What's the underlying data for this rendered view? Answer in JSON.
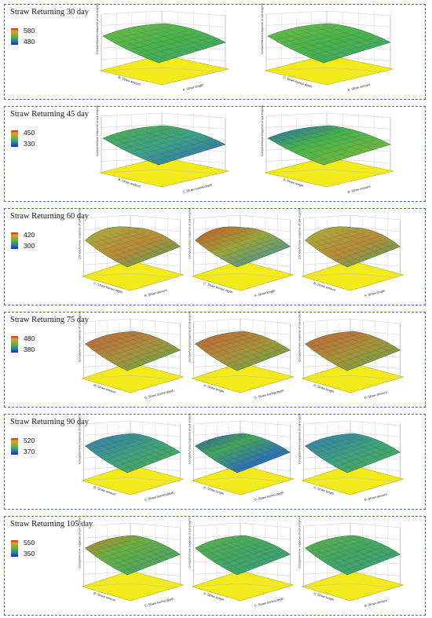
{
  "panels": [
    {
      "title": "Straw Returning 30 day",
      "color_scale": {
        "max": "580",
        "min": "480"
      },
      "plots": [
        {
          "z_axis": "Comprehensive response of soil enzyme",
          "axis_left": "B: Straw amount",
          "axis_right": "A: Straw length"
        },
        {
          "z_axis": "Comprehensive response of soil enzyme",
          "axis_left": "C: Straw buried depth",
          "axis_right": "B: Straw amount"
        }
      ]
    },
    {
      "title": "Straw Returning 45 day",
      "color_scale": {
        "max": "450",
        "min": "330"
      },
      "plots": [
        {
          "z_axis": "Comprehensive response of soil enzyme",
          "axis_left": "B: Straw amount",
          "axis_right": "C: Straw buried depth"
        },
        {
          "z_axis": "Comprehensive response of soil enzyme",
          "axis_left": "A: Straw length",
          "axis_right": "B: Straw amount"
        }
      ]
    },
    {
      "title": "Straw Returning 60 day",
      "color_scale": {
        "max": "420",
        "min": "300"
      },
      "plots": [
        {
          "z_axis": "Comprehensive response of soil enzyme",
          "axis_left": "C: Straw buried depth",
          "axis_right": "B: Straw amount"
        },
        {
          "z_axis": "Comprehensive response of soil enzyme",
          "axis_left": "C: Straw buried depth",
          "axis_right": "A: Straw length"
        },
        {
          "z_axis": "Comprehensive response of soil enzyme",
          "axis_left": "B: Straw amount",
          "axis_right": "A: Straw length"
        }
      ]
    },
    {
      "title": "Straw Returning 75 day",
      "color_scale": {
        "max": "480",
        "min": "380"
      },
      "plots": [
        {
          "z_axis": "Comprehensive response of soil enzyme",
          "axis_left": "B: Straw amount",
          "axis_right": "C: Straw buried depth"
        },
        {
          "z_axis": "Comprehensive response of soil enzyme",
          "axis_left": "A: Straw length",
          "axis_right": "C: Straw buried depth"
        },
        {
          "z_axis": "Comprehensive response of soil enzyme",
          "axis_left": "A: Straw length",
          "axis_right": "B: Straw amount"
        }
      ]
    },
    {
      "title": "Straw Returning 90 day",
      "color_scale": {
        "max": "520",
        "min": "370"
      },
      "plots": [
        {
          "z_axis": "Comprehensive response of soil enzyme",
          "axis_left": "B: Straw amount",
          "axis_right": "C: Straw buried depth"
        },
        {
          "z_axis": "Comprehensive response of soil enzyme",
          "axis_left": "A: Straw length",
          "axis_right": "C: Straw buried depth"
        },
        {
          "z_axis": "Comprehensive response of soil enzyme",
          "axis_left": "A: Straw length",
          "axis_right": "B: Straw amount"
        }
      ]
    },
    {
      "title": "Straw Returning 105 day",
      "color_scale": {
        "max": "550",
        "min": "350"
      },
      "plots": [
        {
          "z_axis": "Comprehensive response of soil enzyme",
          "axis_left": "B: Straw amount",
          "axis_right": "C: Straw buried depth"
        },
        {
          "z_axis": "Comprehensive response of soil enzyme",
          "axis_left": "A: Straw length",
          "axis_right": "C: Straw buried depth"
        },
        {
          "z_axis": "Comprehensive response of soil enzyme",
          "axis_left": "A: Straw length",
          "axis_right": "B: Straw amount"
        }
      ]
    }
  ],
  "colors": {
    "panel_border": "#4a63b8",
    "base_plane": "#f2ea1a",
    "surface_high": "#c9522a",
    "surface_mid": "#49b24c",
    "surface_low": "#2a66b5"
  }
}
